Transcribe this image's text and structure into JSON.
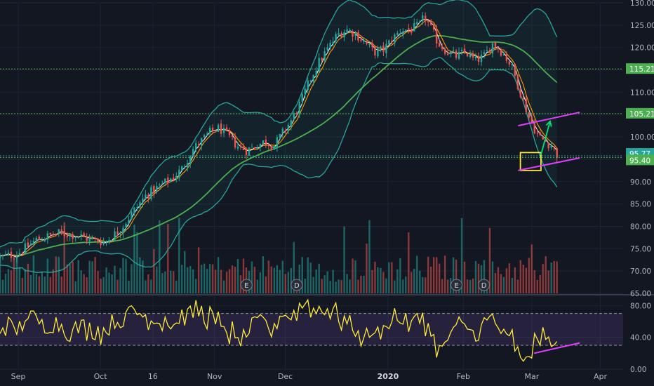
{
  "chart_data": {
    "type": "candlestick",
    "price_axis": {
      "ylim": [
        65,
        130
      ],
      "ticks": [
        "130.00",
        "125.00",
        "120.00",
        "115.00",
        "110.00",
        "105.00",
        "100.00",
        "95.00",
        "90.00",
        "85.00",
        "80.00",
        "75.00",
        "70.00",
        "65.00"
      ],
      "tick_values": [
        130,
        125,
        120,
        115,
        110,
        105,
        100,
        95,
        90,
        85,
        80,
        75,
        70,
        65
      ]
    },
    "x_axis": {
      "labels": [
        "Sep",
        "Oct",
        "16",
        "Nov",
        "Dec",
        "2020",
        "Feb",
        "Mar",
        "Apr"
      ],
      "label_days": [
        0,
        36,
        59,
        86,
        117,
        162,
        195,
        225,
        255
      ],
      "bold_label": "2020",
      "xlim": [
        -8,
        265
      ]
    },
    "horizontal_levels": [
      {
        "value": 115.21,
        "label": "115.21",
        "color": "#4caf50"
      },
      {
        "value": 105.21,
        "label": "105.21",
        "color": "#4caf50"
      },
      {
        "value": 95.77,
        "label": "95.77",
        "color": "#26a69a"
      },
      {
        "value": 95.4,
        "label": "95.40",
        "color": "#4caf50"
      }
    ],
    "price_path": [
      [
        -8,
        73
      ],
      [
        0,
        74
      ],
      [
        8,
        77
      ],
      [
        18,
        78.5
      ],
      [
        26,
        78
      ],
      [
        32,
        77
      ],
      [
        38,
        76.5
      ],
      [
        44,
        79
      ],
      [
        50,
        83
      ],
      [
        56,
        87
      ],
      [
        62,
        89
      ],
      [
        68,
        91
      ],
      [
        72,
        93
      ],
      [
        76,
        97
      ],
      [
        80,
        99
      ],
      [
        84,
        101
      ],
      [
        88,
        102
      ],
      [
        92,
        100
      ],
      [
        96,
        98
      ],
      [
        100,
        97
      ],
      [
        104,
        98
      ],
      [
        108,
        99
      ],
      [
        112,
        98
      ],
      [
        116,
        101
      ],
      [
        120,
        104
      ],
      [
        124,
        108
      ],
      [
        128,
        113
      ],
      [
        132,
        117
      ],
      [
        136,
        120
      ],
      [
        140,
        123
      ],
      [
        144,
        124
      ],
      [
        148,
        123
      ],
      [
        152,
        121
      ],
      [
        156,
        119
      ],
      [
        160,
        119.5
      ],
      [
        164,
        122
      ],
      [
        168,
        124
      ],
      [
        172,
        124
      ],
      [
        176,
        125
      ],
      [
        178,
        127
      ],
      [
        180,
        125
      ],
      [
        184,
        121
      ],
      [
        188,
        119
      ],
      [
        192,
        118
      ],
      [
        196,
        119
      ],
      [
        200,
        117
      ],
      [
        204,
        118
      ],
      [
        208,
        121
      ],
      [
        212,
        119
      ],
      [
        216,
        116
      ],
      [
        220,
        110
      ],
      [
        224,
        104
      ],
      [
        228,
        100
      ],
      [
        231,
        99
      ],
      [
        234,
        98
      ],
      [
        236,
        96
      ]
    ],
    "price_noise": 1.6,
    "volume": {
      "max": 80,
      "count": 200
    },
    "events": [
      {
        "day": 100,
        "label": "E"
      },
      {
        "day": 122,
        "label": "D"
      },
      {
        "day": 192,
        "label": "E"
      },
      {
        "day": 204,
        "label": "D"
      }
    ],
    "annotations": {
      "box": {
        "day_start": 220,
        "day_end": 229,
        "low": 92.5,
        "high": 96.5,
        "color": "#ffeb3b"
      },
      "upper_trendline": {
        "from": [
          219,
          102.5
        ],
        "to": [
          246,
          105.5
        ],
        "color": "#e040fb"
      },
      "lower_trendline": {
        "from": [
          219,
          92.5
        ],
        "to": [
          246,
          95.3
        ],
        "color": "#e040fb"
      },
      "arrow": {
        "from": [
          229,
          96
        ],
        "to": [
          233,
          103.5
        ],
        "color": "#00e676"
      }
    },
    "rsi": {
      "ylim": [
        0,
        90
      ],
      "ticks": [
        "80.00",
        "40.00",
        "0.00"
      ],
      "tick_values": [
        80,
        40,
        0
      ],
      "band": [
        30,
        70
      ],
      "trendline": {
        "from": [
          226,
          20
        ],
        "to": [
          246,
          33
        ],
        "color": "#e040fb"
      }
    },
    "colors": {
      "up": "#26a69a",
      "down": "#ef5350",
      "bollinger": "#26a69a",
      "sma_long": "#4caf50",
      "ema_fast": "#ffffff",
      "ema_mid": "#ff9800",
      "rsi_line": "#ffeb3b",
      "rsi_band": "#7e57c2",
      "grid": "#1e2433",
      "axis_text": "#b2b5be"
    }
  }
}
